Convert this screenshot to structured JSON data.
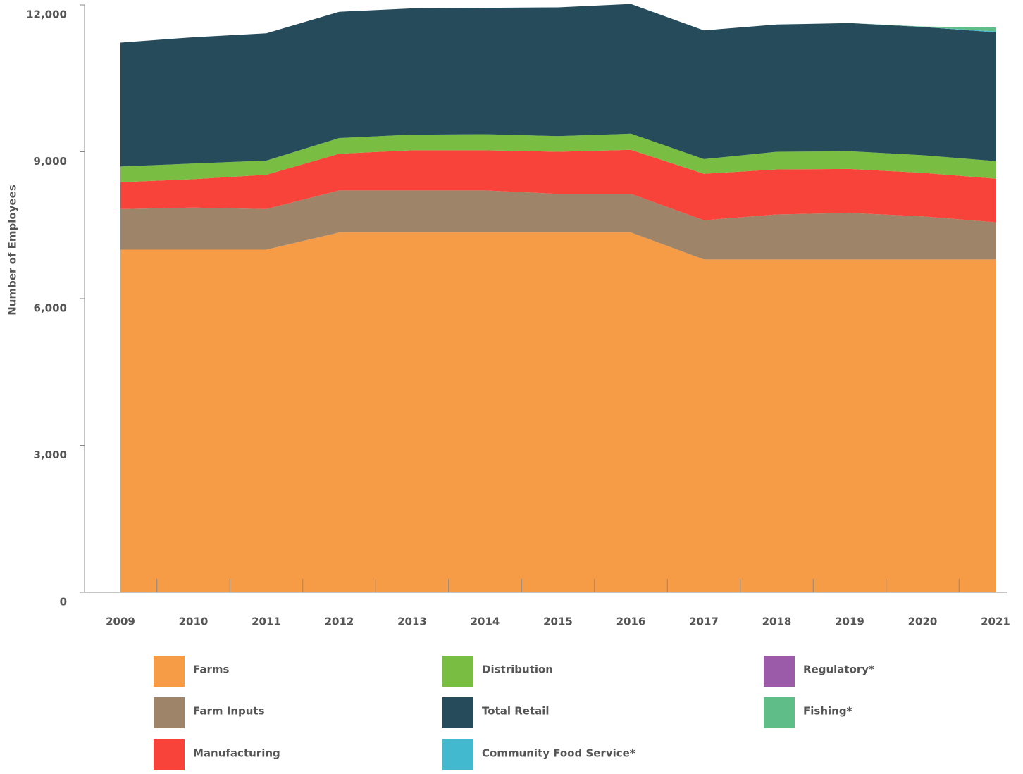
{
  "chart_data": {
    "type": "stacked_area",
    "y_axis_label": "Number of Employees",
    "x": [
      2009,
      2010,
      2011,
      2012,
      2013,
      2014,
      2015,
      2016,
      2017,
      2018,
      2019,
      2020,
      2021
    ],
    "xlim": [
      2009,
      2021
    ],
    "ylim": [
      0,
      12000
    ],
    "yticks": [
      0,
      {
        "value": 3000,
        "label": "3,000"
      },
      {
        "value": 6000,
        "label": "6,000"
      },
      {
        "value": 9000,
        "label": "9,000"
      },
      {
        "value": 12000,
        "label": "12,000"
      }
    ],
    "series": [
      {
        "name": "Farms",
        "color": "#f79c46",
        "values": [
          7000,
          7000,
          7000,
          7350,
          7350,
          7350,
          7350,
          7350,
          6800,
          6800,
          6800,
          6800,
          6800
        ]
      },
      {
        "name": "Farm Inputs",
        "color": "#9e856a",
        "values": [
          830,
          860,
          830,
          860,
          860,
          860,
          790,
          790,
          800,
          920,
          950,
          880,
          760
        ]
      },
      {
        "name": "Manufacturing",
        "color": "#f8433b",
        "values": [
          550,
          580,
          700,
          750,
          820,
          820,
          860,
          900,
          950,
          920,
          900,
          890,
          890
        ]
      },
      {
        "name": "Distribution",
        "color": "#79bd42",
        "values": [
          320,
          320,
          290,
          320,
          320,
          330,
          320,
          330,
          300,
          360,
          360,
          360,
          360
        ]
      },
      {
        "name": "Total Retail",
        "color": "#264c5b",
        "values": [
          2530,
          2580,
          2600,
          2580,
          2580,
          2580,
          2630,
          2650,
          2630,
          2600,
          2620,
          2620,
          2630
        ]
      },
      {
        "name": "Community Food Service*",
        "color": "#43b9d0",
        "values": [
          0,
          0,
          0,
          0,
          0,
          0,
          0,
          0,
          0,
          0,
          0,
          0,
          20
        ]
      },
      {
        "name": "Regulatory*",
        "color": "#9b5ba8",
        "values": [
          0,
          0,
          0,
          0,
          0,
          0,
          0,
          0,
          0,
          0,
          0,
          0,
          0
        ]
      },
      {
        "name": "Fishing*",
        "color": "#5fbe88",
        "values": [
          0,
          0,
          0,
          0,
          0,
          0,
          0,
          0,
          0,
          0,
          0,
          10,
          80
        ]
      }
    ]
  }
}
